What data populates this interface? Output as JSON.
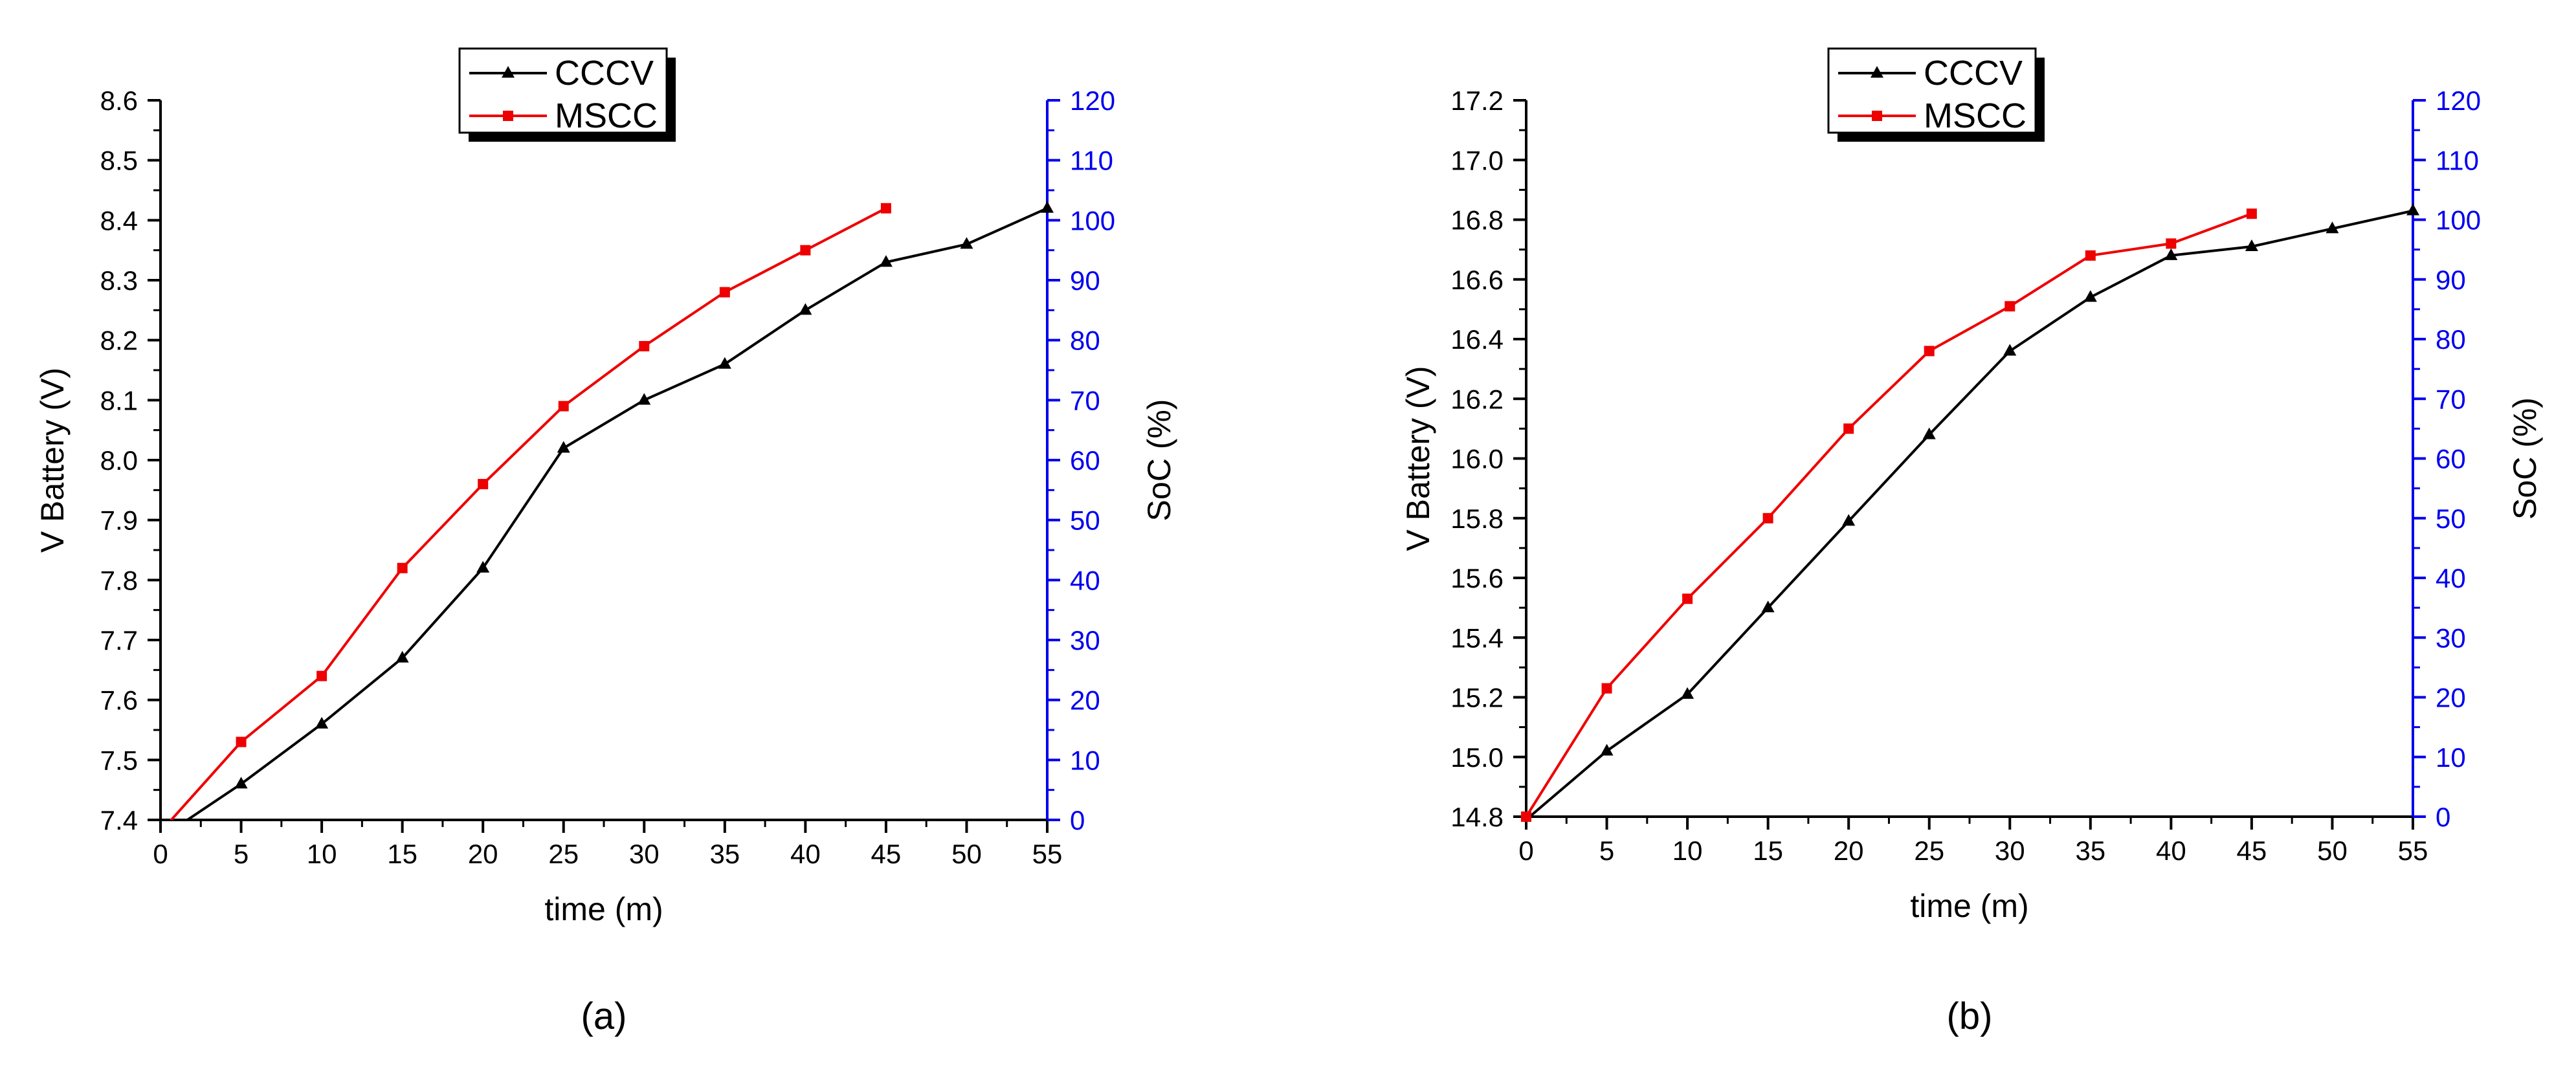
{
  "chart_data": [
    {
      "type": "line",
      "caption": "(a)",
      "xlabel": "time (m)",
      "ylabel": "V Battery (V)",
      "y2label": "SoC (%)",
      "xlim": [
        0,
        55
      ],
      "ylim": [
        7.4,
        8.6
      ],
      "y2lim": [
        0,
        120
      ],
      "xticks": [
        "0",
        "5",
        "10",
        "15",
        "20",
        "25",
        "30",
        "35",
        "40",
        "45",
        "50",
        "55"
      ],
      "yticks": [
        "7.4",
        "7.5",
        "7.6",
        "7.7",
        "7.8",
        "7.9",
        "8.0",
        "8.1",
        "8.2",
        "8.3",
        "8.4",
        "8.5",
        "8.6"
      ],
      "y2ticks": [
        "0",
        "10",
        "20",
        "30",
        "40",
        "50",
        "60",
        "70",
        "80",
        "90",
        "100",
        "110",
        "120"
      ],
      "grid": false,
      "legend_position": "top-center",
      "colors": {
        "axis_left": "#000000",
        "axis_right": "#0000ee"
      },
      "series": [
        {
          "name": "CCCV",
          "color": "#000000",
          "marker": "triangle",
          "x": [
            0,
            5,
            10,
            15,
            20,
            25,
            30,
            35,
            40,
            45,
            50,
            55
          ],
          "y": [
            7.37,
            7.46,
            7.56,
            7.67,
            7.82,
            8.02,
            8.1,
            8.16,
            8.25,
            8.33,
            8.36,
            8.42
          ]
        },
        {
          "name": "MSCC",
          "color": "#ee0000",
          "marker": "square",
          "x": [
            0,
            5,
            10,
            15,
            20,
            25,
            30,
            35,
            40,
            45
          ],
          "y": [
            7.38,
            7.53,
            7.64,
            7.82,
            7.96,
            8.09,
            8.19,
            8.28,
            8.35,
            8.42
          ]
        }
      ]
    },
    {
      "type": "line",
      "caption": "(b)",
      "xlabel": "time (m)",
      "ylabel": "V Battery (V)",
      "y2label": "SoC (%)",
      "xlim": [
        0,
        55
      ],
      "ylim": [
        14.8,
        17.2
      ],
      "y2lim": [
        0,
        120
      ],
      "xticks": [
        "0",
        "5",
        "10",
        "15",
        "20",
        "25",
        "30",
        "35",
        "40",
        "45",
        "50",
        "55"
      ],
      "yticks": [
        "14.8",
        "15.0",
        "15.2",
        "15.4",
        "15.6",
        "15.8",
        "16.0",
        "16.2",
        "16.4",
        "16.6",
        "16.8",
        "17.0",
        "17.2"
      ],
      "y2ticks": [
        "0",
        "10",
        "20",
        "30",
        "40",
        "50",
        "60",
        "70",
        "80",
        "90",
        "100",
        "110",
        "120"
      ],
      "grid": false,
      "legend_position": "top-center",
      "colors": {
        "axis_left": "#000000",
        "axis_right": "#0000ee"
      },
      "series": [
        {
          "name": "CCCV",
          "color": "#000000",
          "marker": "triangle",
          "x": [
            0,
            5,
            10,
            15,
            20,
            25,
            30,
            35,
            40,
            45,
            50,
            55
          ],
          "y": [
            14.79,
            15.02,
            15.21,
            15.5,
            15.79,
            16.08,
            16.36,
            16.54,
            16.68,
            16.71,
            16.77,
            16.83
          ]
        },
        {
          "name": "MSCC",
          "color": "#ee0000",
          "marker": "square",
          "x": [
            0,
            5,
            10,
            15,
            20,
            25,
            30,
            35,
            40,
            45
          ],
          "y": [
            14.8,
            15.23,
            15.53,
            15.8,
            16.1,
            16.36,
            16.51,
            16.68,
            16.72,
            16.82
          ]
        }
      ]
    }
  ]
}
